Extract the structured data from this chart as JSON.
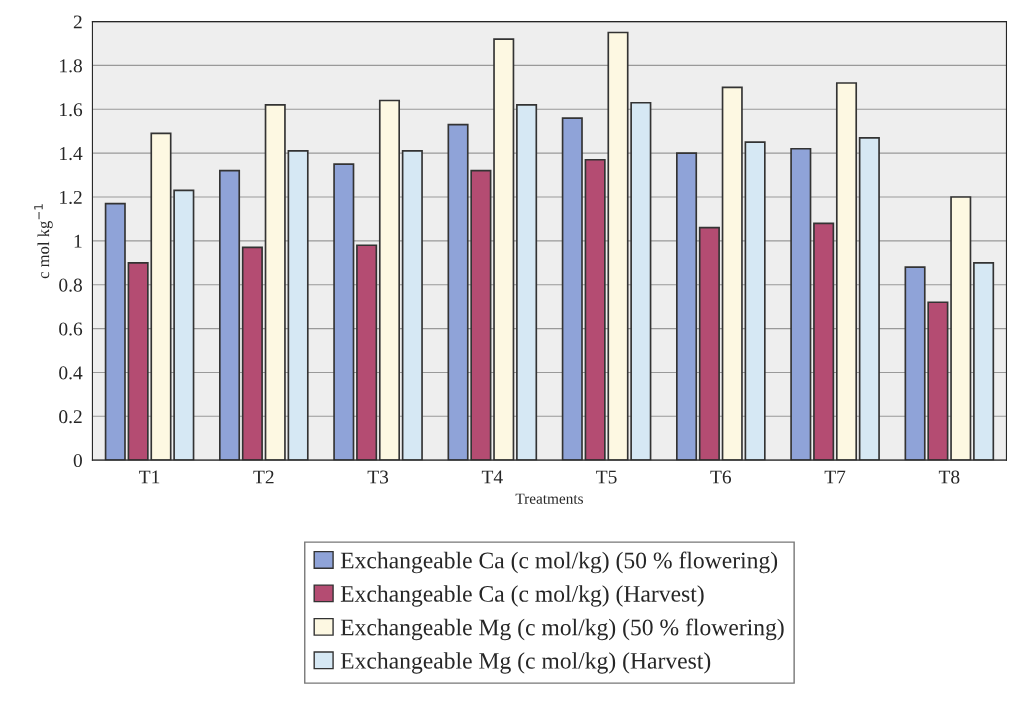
{
  "chart_data": {
    "type": "bar",
    "xlabel": "Treatments",
    "ylabel": "c mol kg$^{−1}$",
    "categories": [
      "T1",
      "T2",
      "T3",
      "T4",
      "T5",
      "T6",
      "T7",
      "T8"
    ],
    "series": [
      {
        "name": "Exchangeable Ca (c mol/kg) (50 % flowering)",
        "color": "#8fa3d8",
        "values": [
          1.17,
          1.32,
          1.35,
          1.53,
          1.56,
          1.4,
          1.42,
          0.88
        ]
      },
      {
        "name": "Exchangeable Ca (c mol/kg) (Harvest)",
        "color": "#b44c72",
        "values": [
          0.9,
          0.97,
          0.98,
          1.32,
          1.37,
          1.06,
          1.08,
          0.72
        ]
      },
      {
        "name": "Exchangeable Mg (c mol/kg) (50 % flowering)",
        "color": "#fdf8e2",
        "values": [
          1.49,
          1.62,
          1.64,
          1.92,
          1.95,
          1.7,
          1.72,
          1.2
        ]
      },
      {
        "name": "Exchangeable Mg (c mol/kg) (Harvest)",
        "color": "#d6e8f4",
        "values": [
          1.23,
          1.41,
          1.41,
          1.62,
          1.63,
          1.45,
          1.47,
          0.9
        ]
      }
    ],
    "ylim": [
      0,
      2
    ],
    "yticks": [
      0,
      0.2,
      0.4,
      0.6,
      0.8,
      1,
      1.2,
      1.4,
      1.6,
      1.8,
      2
    ],
    "grid": "y",
    "legend": "bottom"
  }
}
